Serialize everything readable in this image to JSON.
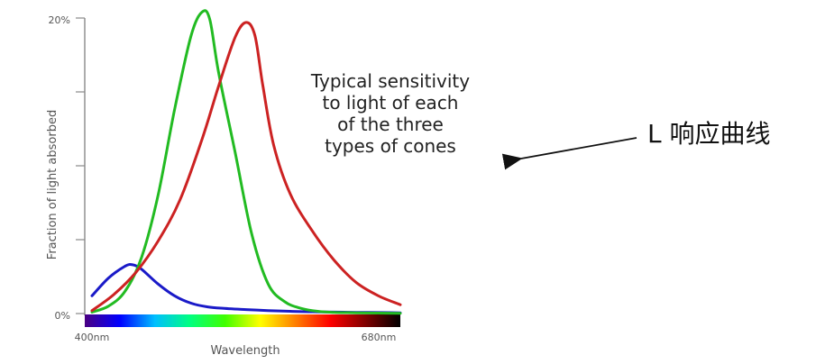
{
  "chart_data": {
    "type": "line",
    "title": "",
    "xlabel": "Wavelength",
    "ylabel": "Fraction of light absorbed",
    "xlim": [
      400,
      680
    ],
    "ylim": [
      0,
      20
    ],
    "x_tick_labels": [
      "400nm",
      "680nm"
    ],
    "y_tick_labels": [
      "0%",
      "20%"
    ],
    "y_minor_ticks": [
      5,
      10,
      15
    ],
    "grid": false,
    "legend": "none",
    "series": [
      {
        "color": "#1a1ac8",
        "x": [
          400,
          415,
          430,
          437,
          445,
          460,
          475,
          490,
          505,
          520,
          540,
          560,
          580,
          600,
          620,
          640,
          660,
          680
        ],
        "y": [
          1.2,
          2.4,
          3.2,
          3.3,
          3.0,
          2.0,
          1.2,
          0.7,
          0.45,
          0.35,
          0.27,
          0.2,
          0.15,
          0.12,
          0.1,
          0.08,
          0.07,
          0.05
        ]
      },
      {
        "color": "#22bb22",
        "x": [
          400,
          415,
          430,
          445,
          460,
          475,
          490,
          500,
          507,
          515,
          530,
          545,
          560,
          575,
          590,
          605,
          620,
          640,
          660,
          680
        ],
        "y": [
          0.1,
          0.5,
          1.5,
          3.8,
          8.0,
          13.8,
          18.8,
          20.4,
          19.9,
          16.3,
          10.9,
          5.4,
          2.0,
          0.8,
          0.35,
          0.15,
          0.08,
          0.05,
          0.03,
          0.02
        ]
      },
      {
        "color": "#cc2222",
        "x": [
          400,
          420,
          440,
          460,
          480,
          500,
          515,
          530,
          540,
          548,
          555,
          565,
          580,
          600,
          620,
          640,
          660,
          680
        ],
        "y": [
          0.2,
          1.3,
          2.8,
          4.9,
          7.7,
          11.8,
          15.4,
          18.7,
          19.7,
          18.8,
          15.5,
          11.4,
          8.1,
          5.6,
          3.6,
          2.1,
          1.2,
          0.6
        ]
      }
    ],
    "annotations": [
      "Typical sensitivity",
      "to light of each",
      "of the three",
      "types of cones"
    ]
  },
  "callout": {
    "label": "L 响应曲线"
  },
  "spectrum_colors": [
    "#4b0082",
    "#0000ff",
    "#00bfff",
    "#00ff80",
    "#40ff00",
    "#ffff00",
    "#ff8000",
    "#ff0000",
    "#800000",
    "#000000"
  ]
}
